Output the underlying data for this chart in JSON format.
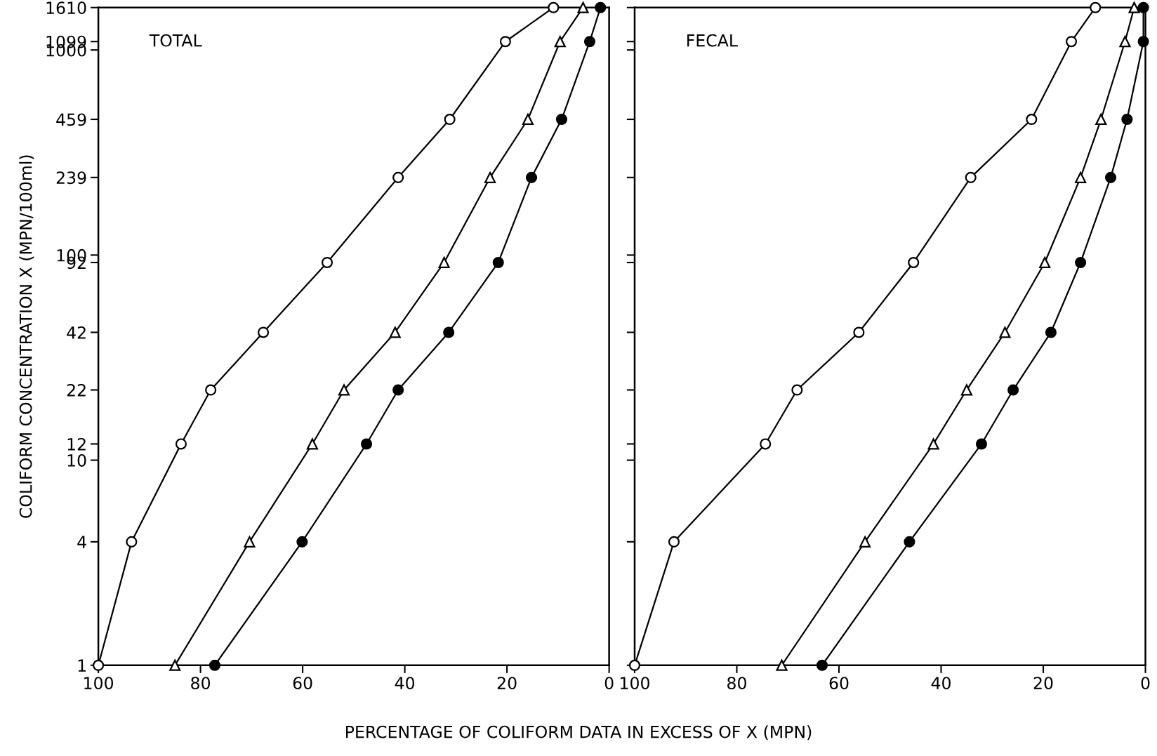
{
  "chart_data": [
    {
      "type": "line",
      "title": "TOTAL",
      "xlabel": "PERCENTAGE OF COLIFORM DATA IN EXCESS OF X (MPN)",
      "ylabel": "COLIFORM CONCENTRATION X (MPN/100ml)",
      "log": "y",
      "grid": false,
      "xlim": [
        100,
        0
      ],
      "xticks": [
        100,
        80,
        60,
        40,
        20,
        0
      ],
      "ylim": [
        1,
        1610
      ],
      "yticks": [
        1,
        4,
        10,
        12,
        22,
        42,
        92,
        100,
        239,
        459,
        1000,
        1099,
        1610
      ],
      "series": [
        {
          "color": "#000000",
          "marker": "circle",
          "x": [
            100,
            93.5,
            83.8,
            78,
            67.7,
            55.2,
            41.3,
            31.2,
            20.3,
            10.9
          ],
          "values": [
            1,
            4,
            12,
            22,
            42,
            92,
            239,
            459,
            1099,
            1610
          ]
        },
        {
          "color": "#000000",
          "marker": "triangle",
          "x": [
            85,
            70.4,
            58.1,
            51.9,
            41.9,
            32.3,
            23.3,
            15.9,
            9.6,
            5.1
          ],
          "values": [
            1,
            4,
            12,
            22,
            42,
            92,
            239,
            459,
            1099,
            1610
          ]
        },
        {
          "color": "#000000",
          "marker": "circle",
          "x": [
            77.2,
            60.1,
            47.5,
            41.3,
            31.4,
            21.7,
            15.2,
            9.3,
            3.8,
            1.7
          ],
          "values": [
            1,
            4,
            12,
            22,
            42,
            92,
            239,
            459,
            1099,
            1610
          ]
        }
      ]
    },
    {
      "type": "line",
      "title": "FECAL",
      "log": "y",
      "grid": false,
      "tick_labels": "x",
      "xlim": [
        100,
        0
      ],
      "xticks": [
        100,
        80,
        60,
        40,
        20,
        0
      ],
      "ylim": [
        1,
        1610
      ],
      "yticks": [
        1,
        4,
        10,
        12,
        22,
        42,
        92,
        100,
        239,
        459,
        1000,
        1099,
        1610
      ],
      "series": [
        {
          "color": "#000000",
          "marker": "circle",
          "x": [
            100,
            92.3,
            74.4,
            68.2,
            56.1,
            45.4,
            34.2,
            22.3,
            14.5,
            9.8
          ],
          "values": [
            1,
            4,
            12,
            22,
            42,
            92,
            239,
            459,
            1099,
            1610
          ]
        },
        {
          "color": "#000000",
          "marker": "triangle",
          "x": [
            71.2,
            54.9,
            41.5,
            35,
            27.5,
            19.7,
            12.7,
            8.7,
            4,
            2.2
          ],
          "values": [
            1,
            4,
            12,
            22,
            42,
            92,
            239,
            459,
            1099,
            1610
          ]
        },
        {
          "color": "#000000",
          "marker": "circle",
          "x": [
            63.3,
            46.2,
            32.1,
            25.9,
            18.5,
            12.7,
            6.8,
            3.6,
            0.4,
            0.4
          ],
          "values": [
            1,
            4,
            12,
            22,
            42,
            92,
            239,
            459,
            1099,
            1610
          ]
        }
      ]
    }
  ]
}
